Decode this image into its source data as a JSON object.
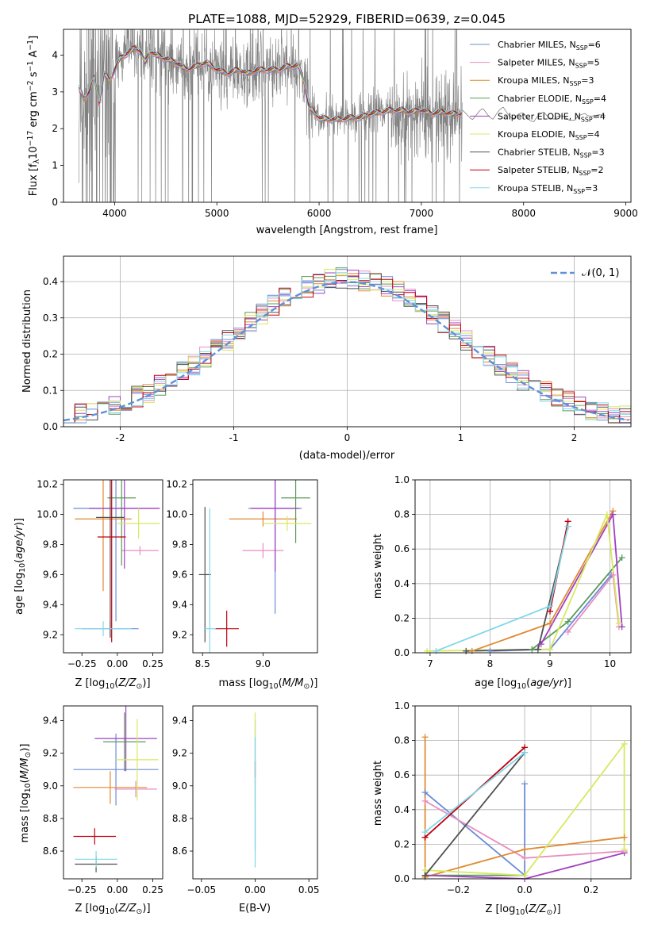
{
  "title": "PLATE=1088, MJD=52929, FIBERID=0639, z=0.045",
  "colors": {
    "series": [
      "#6b8cd8",
      "#e88ec0",
      "#e08a30",
      "#5a9a5a",
      "#a040c0",
      "#d8e860",
      "#505050",
      "#c00010",
      "#80d8e8"
    ],
    "gauss": "#6090d8",
    "obs": "#808080"
  },
  "chart_data": [
    {
      "id": "spectrum",
      "type": "line",
      "xlabel": "wavelength [Angstrom, rest frame]",
      "ylabel": "Flux [f_λ10^-17 erg cm^-2 s^-1 A^-1]",
      "xlim": [
        3500,
        9050
      ],
      "ylim": [
        0,
        4.7
      ],
      "xticks": [
        4000,
        5000,
        6000,
        7000,
        8000,
        9000
      ],
      "yticks": [
        0,
        1,
        2,
        3,
        4
      ],
      "legend_position": "top-right",
      "series": [
        {
          "name": "Chabrier MILES, N_SSP=6"
        },
        {
          "name": "Salpeter MILES, N_SSP=5"
        },
        {
          "name": "Kroupa MILES, N_SSP=3"
        },
        {
          "name": "Chabrier ELODIE, N_SSP=4"
        },
        {
          "name": "Salpeter ELODIE, N_SSP=4"
        },
        {
          "name": "Kroupa ELODIE, N_SSP=4"
        },
        {
          "name": "Chabrier STELIB, N_SSP=3"
        },
        {
          "name": "Salpeter STELIB, N_SSP=2"
        },
        {
          "name": "Kroupa STELIB, N_SSP=3"
        }
      ],
      "model_curve": {
        "x": [
          3650,
          3700,
          3750,
          3800,
          3850,
          3900,
          3950,
          4000,
          4050,
          4100,
          4150,
          4200,
          4250,
          4300,
          4350,
          4400,
          4500,
          4600,
          4700,
          4800,
          4900,
          5000,
          5100,
          5200,
          5300,
          5400,
          5500,
          5600,
          5700,
          5800,
          5850,
          5900,
          6000,
          6100,
          6200,
          6300,
          6400,
          6500,
          6600,
          6700,
          6800,
          6900,
          7000,
          7100,
          7200,
          7300,
          7400
        ],
        "y": [
          3.1,
          2.8,
          3.0,
          3.4,
          2.7,
          3.5,
          3.3,
          3.6,
          3.9,
          4.0,
          4.1,
          4.2,
          4.1,
          3.8,
          4.1,
          4.0,
          3.9,
          3.8,
          3.6,
          3.7,
          3.8,
          3.6,
          3.5,
          3.6,
          3.5,
          3.6,
          3.6,
          3.6,
          3.7,
          3.7,
          3.3,
          2.6,
          2.3,
          2.25,
          2.25,
          2.3,
          2.3,
          2.4,
          2.45,
          2.5,
          2.5,
          2.45,
          2.5,
          2.4,
          2.45,
          2.4,
          2.4
        ]
      },
      "observed_tail": {
        "x": [
          7400,
          7500,
          7600,
          7700,
          7800,
          7900,
          8000,
          8100,
          8200,
          8300,
          8400,
          8500,
          8600,
          8700,
          8800
        ],
        "y": [
          2.45,
          2.3,
          2.5,
          2.3,
          2.55,
          2.3,
          2.4,
          2.2,
          2.45,
          2.25,
          2.35,
          2.2,
          2.45,
          2.3,
          2.4
        ]
      }
    },
    {
      "id": "residuals",
      "type": "histogram",
      "xlabel": "(data-model)/error",
      "ylabel": "Normed distribution",
      "xlim": [
        -2.5,
        2.5
      ],
      "ylim": [
        0,
        0.47
      ],
      "xticks": [
        -2,
        -1,
        0,
        1,
        2
      ],
      "yticks": [
        0.0,
        0.1,
        0.2,
        0.3,
        0.4
      ],
      "grid": true,
      "legend": "𝒩(0, 1)",
      "legend_position": "top-right",
      "gaussian": {
        "mean": 0,
        "sigma": 1
      }
    },
    {
      "id": "age-vs-Z",
      "type": "errorbar",
      "xlabel": "Z [log10(Z/Z☉)]",
      "ylabel": "age  [log10(age/yr)]",
      "xlim": [
        -0.38,
        0.32
      ],
      "ylim": [
        9.08,
        10.23
      ],
      "xticks": [
        -0.25,
        0.0,
        0.25
      ],
      "xtick_labels": [
        "−0.25",
        "0.00",
        "0.25"
      ],
      "yticks": [
        9.2,
        9.4,
        9.6,
        9.8,
        10.0,
        10.2
      ],
      "points": [
        {
          "series": 0,
          "x": -0.01,
          "y": 10.04,
          "xerr": 0.3,
          "yerr": 0.75
        },
        {
          "series": 0,
          "x": -0.05,
          "y": 9.24,
          "xerr": 0.2,
          "yerr": 0.05
        },
        {
          "series": 1,
          "x": 0.16,
          "y": 9.76,
          "xerr": 0.13,
          "yerr": 0.03
        },
        {
          "series": 2,
          "x": -0.1,
          "y": 9.97,
          "xerr": 0.2,
          "yerr": 0.48
        },
        {
          "series": 3,
          "x": 0.03,
          "y": 10.11,
          "xerr": 0.1,
          "yerr": 0.45
        },
        {
          "series": 4,
          "x": 0.05,
          "y": 10.04,
          "xerr": 0.25,
          "yerr": 0.4
        },
        {
          "series": 5,
          "x": 0.15,
          "y": 9.94,
          "xerr": 0.15,
          "yerr": 0.1
        },
        {
          "series": 6,
          "x": -0.05,
          "y": 9.98,
          "xerr": 0.1,
          "yerr": 0.8
        },
        {
          "series": 7,
          "x": -0.04,
          "y": 9.85,
          "xerr": 0.1,
          "yerr": 0.7
        },
        {
          "series": 8,
          "x": -0.1,
          "y": 9.24,
          "xerr": 0.2,
          "yerr": 0.05
        }
      ]
    },
    {
      "id": "age-vs-mass",
      "type": "errorbar",
      "xlabel": "mass [log10(M/M☉)]",
      "xlim": [
        8.42,
        9.45
      ],
      "ylim": [
        9.08,
        10.23
      ],
      "xticks": [
        8.5,
        9.0
      ],
      "xtick_labels": [
        "8.5",
        "9.0"
      ],
      "yticks": [
        9.2,
        9.4,
        9.6,
        9.8,
        10.0,
        10.2
      ],
      "points": [
        {
          "series": 0,
          "x": 9.1,
          "y": 10.04,
          "xerr": 0.22,
          "yerr": 0.7
        },
        {
          "series": 1,
          "x": 9.0,
          "y": 9.76,
          "xerr": 0.17,
          "yerr": 0.05
        },
        {
          "series": 2,
          "x": 9.0,
          "y": 9.97,
          "xerr": 0.28,
          "yerr": 0.05
        },
        {
          "series": 3,
          "x": 9.27,
          "y": 10.11,
          "xerr": 0.12,
          "yerr": 0.3
        },
        {
          "series": 4,
          "x": 9.1,
          "y": 10.04,
          "xerr": 0.2,
          "yerr": 0.42
        },
        {
          "series": 5,
          "x": 9.2,
          "y": 9.94,
          "xerr": 0.2,
          "yerr": 0.05
        },
        {
          "series": 6,
          "x": 8.52,
          "y": 9.6,
          "xerr": 0.05,
          "yerr": 0.45
        },
        {
          "series": 7,
          "x": 8.7,
          "y": 9.24,
          "xerr": 0.1,
          "yerr": 0.12
        },
        {
          "series": 8,
          "x": 8.56,
          "y": 9.24,
          "xerr": 0.05,
          "yerr": 0.8
        }
      ]
    },
    {
      "id": "weight-vs-age",
      "type": "line",
      "xlabel": "age  [log10(age/yr)]",
      "ylabel": "mass weight",
      "xlim": [
        6.75,
        10.35
      ],
      "ylim": [
        0,
        1.0
      ],
      "xticks": [
        7,
        8,
        9,
        10
      ],
      "yticks": [
        0.0,
        0.2,
        0.4,
        0.6,
        0.8,
        1.0
      ],
      "grid": true,
      "series": [
        {
          "series": 0,
          "x": [
            8.0,
            9.0,
            10.02
          ],
          "y": [
            0.01,
            0.02,
            0.45
          ]
        },
        {
          "series": 1,
          "x": [
            9.3,
            10.05,
            10.15
          ],
          "y": [
            0.12,
            0.45,
            0.15
          ]
        },
        {
          "series": 2,
          "x": [
            7.7,
            9.0,
            10.05
          ],
          "y": [
            0.01,
            0.17,
            0.82
          ]
        },
        {
          "series": 3,
          "x": [
            8.7,
            9.3,
            10.2
          ],
          "y": [
            0.02,
            0.18,
            0.55
          ]
        },
        {
          "series": 4,
          "x": [
            8.85,
            10.05,
            10.2
          ],
          "y": [
            0.05,
            0.8,
            0.15
          ]
        },
        {
          "series": 5,
          "x": [
            6.95,
            9.0,
            9.95,
            10.15
          ],
          "y": [
            0.01,
            0.02,
            0.8,
            0.17
          ]
        },
        {
          "series": 6,
          "x": [
            7.6,
            8.8,
            9.3
          ],
          "y": [
            0.01,
            0.02,
            0.73
          ]
        },
        {
          "series": 7,
          "x": [
            9.0,
            9.3
          ],
          "y": [
            0.24,
            0.76
          ]
        },
        {
          "series": 8,
          "x": [
            7.1,
            9.0,
            9.3
          ],
          "y": [
            0.01,
            0.27,
            0.73
          ]
        }
      ]
    },
    {
      "id": "mass-vs-Z",
      "type": "errorbar",
      "xlabel": "Z [log10(Z/Z☉)]",
      "ylabel": "mass [log10(M/M☉)]",
      "xlim": [
        -0.38,
        0.32
      ],
      "ylim": [
        8.43,
        9.49
      ],
      "xticks": [
        -0.25,
        0.0,
        0.25
      ],
      "xtick_labels": [
        "−0.25",
        "0.00",
        "0.25"
      ],
      "yticks": [
        8.6,
        8.8,
        9.0,
        9.2,
        9.4
      ],
      "points": [
        {
          "series": 0,
          "x": -0.01,
          "y": 9.1,
          "xerr": 0.3,
          "yerr": 0.22
        },
        {
          "series": 1,
          "x": 0.13,
          "y": 8.98,
          "xerr": 0.15,
          "yerr": 0.05
        },
        {
          "series": 2,
          "x": -0.05,
          "y": 8.99,
          "xerr": 0.26,
          "yerr": 0.1
        },
        {
          "series": 3,
          "x": 0.05,
          "y": 9.27,
          "xerr": 0.15,
          "yerr": 0.18
        },
        {
          "series": 4,
          "x": 0.06,
          "y": 9.29,
          "xerr": 0.22,
          "yerr": 0.2
        },
        {
          "series": 5,
          "x": 0.14,
          "y": 9.16,
          "xerr": 0.15,
          "yerr": 0.25
        },
        {
          "series": 6,
          "x": -0.15,
          "y": 8.52,
          "xerr": 0.15,
          "yerr": 0.05
        },
        {
          "series": 7,
          "x": -0.16,
          "y": 8.69,
          "xerr": 0.15,
          "yerr": 0.05
        },
        {
          "series": 8,
          "x": -0.15,
          "y": 8.55,
          "xerr": 0.15,
          "yerr": 0.05
        }
      ]
    },
    {
      "id": "mass-vs-EBV",
      "type": "errorbar",
      "xlabel": "E(B-V)",
      "xlim": [
        -0.058,
        0.058
      ],
      "ylim": [
        8.43,
        9.49
      ],
      "xticks": [
        -0.05,
        0.0,
        0.05
      ],
      "xtick_labels": [
        "−0.05",
        "0.00",
        "0.05"
      ],
      "yticks": [
        8.6,
        8.8,
        9.0,
        9.2,
        9.4
      ],
      "points": [
        {
          "series": 0,
          "x": 0,
          "y": 9.0,
          "xerr": 0,
          "yerr": 0.4
        },
        {
          "series": 5,
          "x": 0,
          "y": 9.15,
          "xerr": 0,
          "yerr": 0.3
        },
        {
          "series": 7,
          "x": 0,
          "y": 9.1,
          "xerr": 0,
          "yerr": 0.05
        },
        {
          "series": 8,
          "x": 0,
          "y": 8.9,
          "xerr": 0,
          "yerr": 0.4
        }
      ]
    },
    {
      "id": "weight-vs-Z",
      "type": "line",
      "xlabel": "Z [log10(Z/Z☉)]",
      "ylabel": "mass weight",
      "xlim": [
        -0.33,
        0.32
      ],
      "ylim": [
        0,
        1.0
      ],
      "xticks": [
        -0.2,
        0.0,
        0.2
      ],
      "xtick_labels": [
        "−0.2",
        "0.0",
        "0.2"
      ],
      "yticks": [
        0.0,
        0.2,
        0.4,
        0.6,
        0.8,
        1.0
      ],
      "grid": true,
      "series": [
        {
          "series": 0,
          "x": [
            -0.3,
            0.0,
            0.0
          ],
          "y": [
            0.5,
            0.02,
            0.55
          ]
        },
        {
          "series": 1,
          "x": [
            -0.3,
            0.0,
            0.3
          ],
          "y": [
            0.45,
            0.12,
            0.16
          ]
        },
        {
          "series": 2,
          "x": [
            -0.3,
            -0.3,
            0.0,
            0.3
          ],
          "y": [
            0.82,
            0.01,
            0.17,
            0.24
          ]
        },
        {
          "series": 3,
          "x": [
            -0.3,
            0.0
          ],
          "y": [
            0.02,
            0.02
          ]
        },
        {
          "series": 4,
          "x": [
            -0.3,
            0.0,
            0.3
          ],
          "y": [
            0.02,
            0.0,
            0.15
          ]
        },
        {
          "series": 5,
          "x": [
            -0.3,
            0.0,
            0.3,
            0.3
          ],
          "y": [
            0.05,
            0.02,
            0.78,
            0.17
          ]
        },
        {
          "series": 6,
          "x": [
            -0.3,
            0.0
          ],
          "y": [
            0.02,
            0.73
          ]
        },
        {
          "series": 7,
          "x": [
            -0.3,
            0.0
          ],
          "y": [
            0.24,
            0.76
          ]
        },
        {
          "series": 8,
          "x": [
            -0.3,
            0.0
          ],
          "y": [
            0.27,
            0.73
          ]
        }
      ]
    }
  ]
}
